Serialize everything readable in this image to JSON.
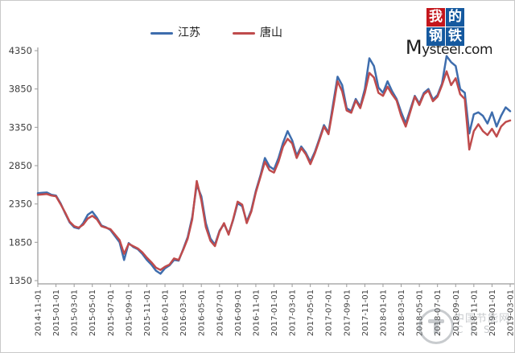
{
  "logo": {
    "chars": [
      "我",
      "的",
      "钢",
      "铁"
    ],
    "red_bg": "#c4161c",
    "blue_bg": "#15599f",
    "domain_first_letter": "M",
    "domain_rest": "ysteel.com"
  },
  "watermark": {
    "line1": "中国节能网",
    "line2": "CES"
  },
  "chart_data": {
    "type": "line",
    "title": "",
    "xlabel": "",
    "ylabel": "",
    "ylim": [
      1350,
      4350
    ],
    "y_ticks": [
      4350,
      3850,
      3350,
      2850,
      2350,
      1850,
      1350
    ],
    "grid": false,
    "legend_position": "top",
    "axis_color": "#9b9b9b",
    "tick_text_color": "#404040",
    "x_start": "2014-11-01",
    "x_end": "2019-03-01",
    "points_per_month": 2,
    "x_tick_labels": [
      "2014-11-01",
      "2015-01-01",
      "2015-03-01",
      "2015-05-01",
      "2015-07-01",
      "2015-09-01",
      "2015-11-01",
      "2016-01-01",
      "2016-03-01",
      "2016-05-01",
      "2016-07-01",
      "2016-09-01",
      "2016-11-01",
      "2017-01-01",
      "2017-03-01",
      "2017-05-01",
      "2017-07-01",
      "2017-09-01",
      "2017-11-01",
      "2018-01-01",
      "2018-03-01",
      "2018-05-01",
      "2018-07-01",
      "2018-09-01",
      "2018-11-01",
      "2019-01-01",
      "2019-03-01"
    ],
    "series": [
      {
        "name": "江苏",
        "color": "#3e6dad",
        "values": [
          2490,
          2495,
          2500,
          2470,
          2460,
          2360,
          2230,
          2110,
          2045,
          2030,
          2100,
          2210,
          2250,
          2170,
          2070,
          2045,
          2010,
          1930,
          1850,
          1620,
          1840,
          1790,
          1760,
          1700,
          1620,
          1560,
          1480,
          1440,
          1510,
          1550,
          1620,
          1610,
          1760,
          1920,
          2180,
          2600,
          2450,
          2100,
          1900,
          1820,
          2000,
          2090,
          1960,
          2140,
          2360,
          2320,
          2120,
          2270,
          2520,
          2720,
          2950,
          2840,
          2800,
          2950,
          3150,
          3300,
          3180,
          2980,
          3100,
          3020,
          2900,
          3030,
          3200,
          3380,
          3280,
          3650,
          4010,
          3900,
          3600,
          3560,
          3720,
          3620,
          3850,
          4250,
          4150,
          3870,
          3800,
          3950,
          3820,
          3720,
          3550,
          3400,
          3580,
          3760,
          3660,
          3800,
          3850,
          3710,
          3770,
          3920,
          4280,
          4200,
          4150,
          3850,
          3800,
          3270,
          3520,
          3545,
          3500,
          3400,
          3545,
          3360,
          3500,
          3610,
          3560
        ]
      },
      {
        "name": "唐山",
        "color": "#bf4b4c",
        "values": [
          2470,
          2475,
          2480,
          2460,
          2450,
          2350,
          2240,
          2120,
          2060,
          2040,
          2080,
          2160,
          2195,
          2150,
          2060,
          2040,
          2020,
          1950,
          1880,
          1700,
          1830,
          1800,
          1770,
          1720,
          1650,
          1590,
          1520,
          1490,
          1530,
          1560,
          1640,
          1620,
          1750,
          1900,
          2150,
          2650,
          2400,
          2050,
          1870,
          1800,
          1990,
          2100,
          1950,
          2150,
          2380,
          2340,
          2100,
          2250,
          2500,
          2700,
          2900,
          2790,
          2760,
          2900,
          3100,
          3200,
          3140,
          2950,
          3080,
          3000,
          2870,
          3010,
          3180,
          3360,
          3260,
          3600,
          3950,
          3820,
          3570,
          3540,
          3700,
          3600,
          3800,
          4060,
          4000,
          3800,
          3760,
          3880,
          3780,
          3700,
          3500,
          3360,
          3550,
          3750,
          3640,
          3780,
          3830,
          3690,
          3750,
          3900,
          4080,
          3900,
          3990,
          3780,
          3720,
          3060,
          3300,
          3390,
          3300,
          3250,
          3330,
          3230,
          3360,
          3420,
          3440
        ]
      }
    ]
  }
}
